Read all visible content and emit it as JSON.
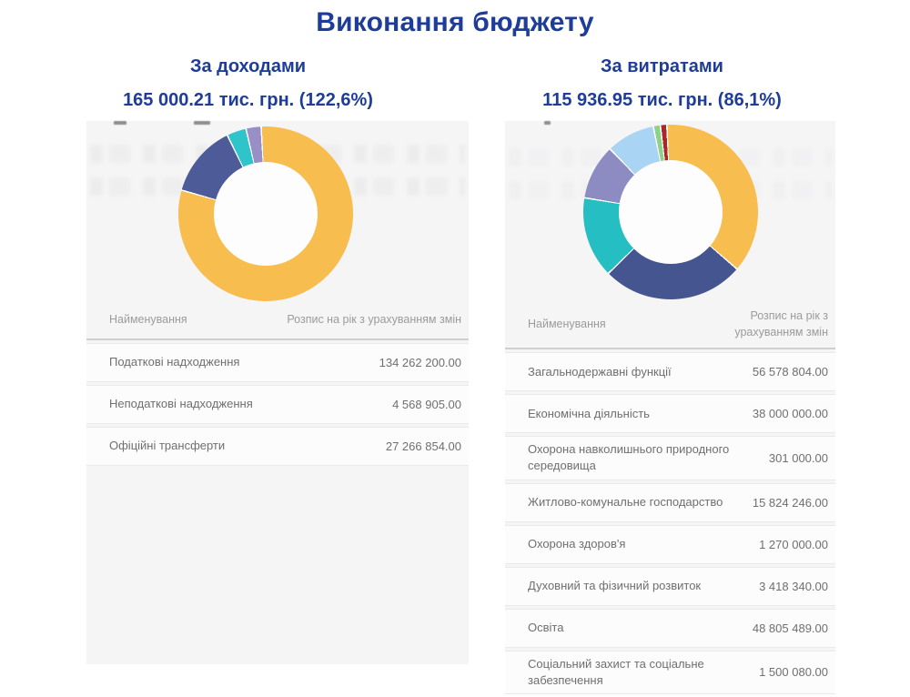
{
  "title": "Виконання бюджету",
  "income": {
    "heading": "За доходами",
    "amount": "165 000.21 тис. грн. (122,6%)"
  },
  "expense": {
    "heading": "За витратами",
    "amount": "115 936.95 тис. грн. (86,1%)"
  },
  "income_table": {
    "headers": [
      "Найменування",
      "Розпис на рік з урахуванням змін"
    ],
    "rows": [
      {
        "name": "Податкові надходження",
        "value": "134 262 200.00"
      },
      {
        "name": "Неподаткові надходження",
        "value": "4 568 905.00"
      },
      {
        "name": "Офіційні трансферти",
        "value": "27 266 854.00"
      }
    ]
  },
  "expense_table": {
    "headers": [
      "Найменування",
      "Розпис на рік з урахуванням змін"
    ],
    "rows": [
      {
        "name": "Загальнодержавні функції",
        "value": "56 578 804.00"
      },
      {
        "name": "Економічна діяльність",
        "value": "38 000 000.00"
      },
      {
        "name": "Охорона навколишнього природного середовища",
        "value": "301 000.00"
      },
      {
        "name": "Житлово-комунальне господарство",
        "value": "15 824 246.00"
      },
      {
        "name": "Охорона здоров'я",
        "value": "1 270 000.00"
      },
      {
        "name": "Духовний та фізичний розвиток",
        "value": "3 418 340.00"
      },
      {
        "name": "Освіта",
        "value": "48 805 489.00"
      },
      {
        "name": "Соціальний захист та соціальне забезпечення",
        "value": "1 500 080.00"
      }
    ]
  },
  "chart_data": [
    {
      "type": "pie",
      "subtype": "donut",
      "title": "За доходами",
      "legend_position": "none",
      "start_angle_deg": 357,
      "segments": [
        {
          "label": "yellow",
          "color": "#f7bd4f",
          "percent": 80.2
        },
        {
          "label": "dark-blue",
          "color": "#4d5b99",
          "percent": 13.4
        },
        {
          "label": "teal",
          "color": "#2fc4c9",
          "percent": 3.6
        },
        {
          "label": "purple",
          "color": "#998fc6",
          "percent": 2.8
        }
      ]
    },
    {
      "type": "pie",
      "subtype": "donut",
      "title": "За витратами",
      "legend_position": "none",
      "start_angle_deg": 357.5,
      "segments": [
        {
          "label": "yellow",
          "color": "#f7bd4f",
          "percent": 37.0
        },
        {
          "label": "dark-blue",
          "color": "#45558f",
          "percent": 26.3
        },
        {
          "label": "teal",
          "color": "#25bec2",
          "percent": 15.0
        },
        {
          "label": "purple",
          "color": "#8d8cc2",
          "percent": 10.2
        },
        {
          "label": "light-blue",
          "color": "#a9d4f4",
          "percent": 9.0
        },
        {
          "label": "green",
          "color": "#8fd287",
          "percent": 1.3
        },
        {
          "label": "red",
          "color": "#a9262b",
          "percent": 1.2
        }
      ]
    }
  ],
  "colors": {
    "accent_navy": "#1e3c9a",
    "panel_background": "#f5f5f6",
    "header_text": "#9b9b9b",
    "cell_text": "#6f6f6f"
  }
}
